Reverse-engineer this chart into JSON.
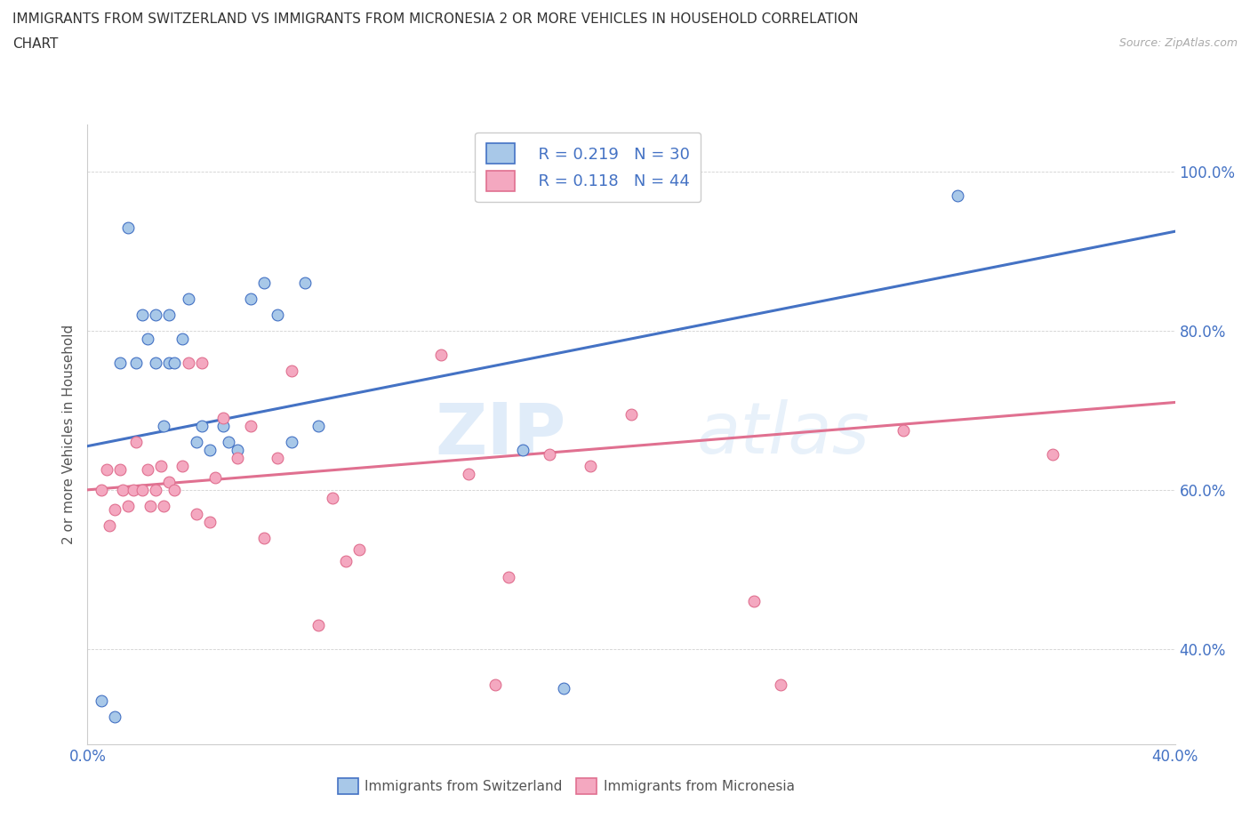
{
  "title_line1": "IMMIGRANTS FROM SWITZERLAND VS IMMIGRANTS FROM MICRONESIA 2 OR MORE VEHICLES IN HOUSEHOLD CORRELATION",
  "title_line2": "CHART",
  "source": "Source: ZipAtlas.com",
  "ylabel": "2 or more Vehicles in Household",
  "xlim": [
    0.0,
    0.4
  ],
  "ylim": [
    0.28,
    1.06
  ],
  "yticks": [
    0.4,
    0.6,
    0.8,
    1.0
  ],
  "ytick_labels": [
    "40.0%",
    "60.0%",
    "80.0%",
    "100.0%"
  ],
  "color_swiss": "#a8c8e8",
  "color_micro": "#f4a8c0",
  "line_color_swiss": "#4472c4",
  "line_color_micro": "#e07090",
  "watermark_zip": "ZIP",
  "watermark_atlas": "atlas",
  "legend_r_swiss": "R = 0.219",
  "legend_n_swiss": "N = 30",
  "legend_r_micro": "R = 0.118",
  "legend_n_micro": "N = 44",
  "swiss_x": [
    0.005,
    0.01,
    0.012,
    0.015,
    0.018,
    0.02,
    0.022,
    0.025,
    0.025,
    0.028,
    0.03,
    0.03,
    0.032,
    0.035,
    0.037,
    0.04,
    0.042,
    0.045,
    0.05,
    0.052,
    0.055,
    0.06,
    0.065,
    0.07,
    0.075,
    0.08,
    0.085,
    0.16,
    0.175,
    0.32
  ],
  "swiss_y": [
    0.335,
    0.315,
    0.76,
    0.93,
    0.76,
    0.82,
    0.79,
    0.76,
    0.82,
    0.68,
    0.76,
    0.82,
    0.76,
    0.79,
    0.84,
    0.66,
    0.68,
    0.65,
    0.68,
    0.66,
    0.65,
    0.84,
    0.86,
    0.82,
    0.66,
    0.86,
    0.68,
    0.65,
    0.35,
    0.97
  ],
  "micro_x": [
    0.005,
    0.007,
    0.008,
    0.01,
    0.012,
    0.013,
    0.015,
    0.017,
    0.018,
    0.02,
    0.022,
    0.023,
    0.025,
    0.027,
    0.028,
    0.03,
    0.032,
    0.035,
    0.037,
    0.04,
    0.042,
    0.045,
    0.047,
    0.05,
    0.055,
    0.06,
    0.065,
    0.07,
    0.075,
    0.085,
    0.09,
    0.095,
    0.1,
    0.13,
    0.14,
    0.15,
    0.155,
    0.17,
    0.185,
    0.2,
    0.245,
    0.255,
    0.3,
    0.355
  ],
  "micro_y": [
    0.6,
    0.625,
    0.555,
    0.575,
    0.625,
    0.6,
    0.58,
    0.6,
    0.66,
    0.6,
    0.625,
    0.58,
    0.6,
    0.63,
    0.58,
    0.61,
    0.6,
    0.63,
    0.76,
    0.57,
    0.76,
    0.56,
    0.615,
    0.69,
    0.64,
    0.68,
    0.54,
    0.64,
    0.75,
    0.43,
    0.59,
    0.51,
    0.525,
    0.77,
    0.62,
    0.355,
    0.49,
    0.645,
    0.63,
    0.695,
    0.46,
    0.355,
    0.675,
    0.645
  ]
}
